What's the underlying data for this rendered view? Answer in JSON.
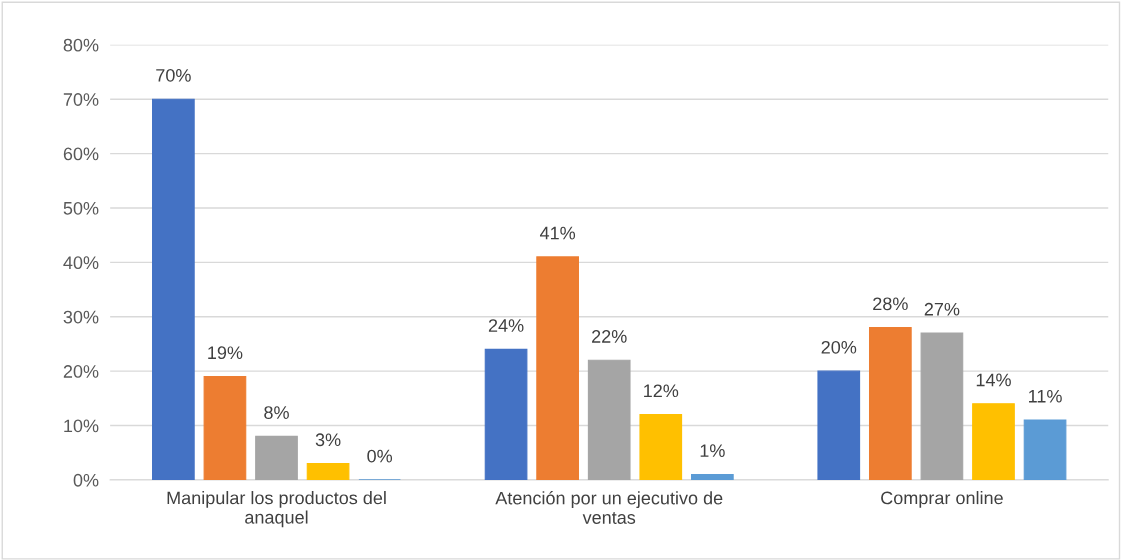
{
  "chart_data": {
    "type": "bar",
    "categories": [
      "Manipular los productos del anaquel",
      "Atención por un ejecutivo de ventas",
      "Comprar online"
    ],
    "series": [
      {
        "color": "#4472c4",
        "values": [
          70,
          24,
          20
        ],
        "value_labels": [
          "70%",
          "24%",
          "20%"
        ]
      },
      {
        "color": "#ed7d31",
        "values": [
          19,
          41,
          28
        ],
        "value_labels": [
          "19%",
          "41%",
          "28%"
        ]
      },
      {
        "color": "#a5a5a5",
        "values": [
          8,
          22,
          27
        ],
        "value_labels": [
          "8%",
          "22%",
          "27%"
        ]
      },
      {
        "color": "#ffc000",
        "values": [
          3,
          12,
          14
        ],
        "value_labels": [
          "3%",
          "12%",
          "14%"
        ]
      },
      {
        "color": "#5b9bd5",
        "values": [
          0,
          1,
          11
        ],
        "value_labels": [
          "0%",
          "1%",
          "11%"
        ]
      }
    ],
    "ylim": [
      0,
      80
    ],
    "yticks": [
      {
        "value": 0,
        "label": "0%"
      },
      {
        "value": 10,
        "label": "10%"
      },
      {
        "value": 20,
        "label": "20%"
      },
      {
        "value": 30,
        "label": "30%"
      },
      {
        "value": 40,
        "label": "40%"
      },
      {
        "value": 50,
        "label": "50%"
      },
      {
        "value": 60,
        "label": "60%"
      },
      {
        "value": 70,
        "label": "70%"
      },
      {
        "value": 80,
        "label": "80%"
      }
    ],
    "grid": "y"
  }
}
